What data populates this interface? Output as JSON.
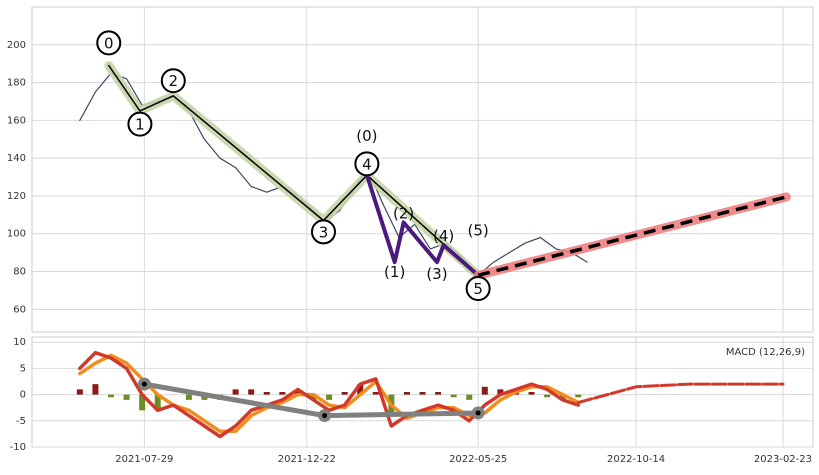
{
  "chart_data": [
    {
      "type": "line",
      "ylim": [
        48,
        220
      ],
      "yticks": [
        60,
        80,
        100,
        120,
        140,
        160,
        180,
        200
      ],
      "grid": true,
      "series": [
        {
          "color": "#3b4a5e",
          "width": 1.2,
          "x": [
            "2021-06-01",
            "2021-06-15",
            "2021-06-29",
            "2021-07-13",
            "2021-07-27",
            "2021-08-10",
            "2021-08-24",
            "2021-09-07",
            "2021-09-21",
            "2021-10-05",
            "2021-10-19",
            "2021-11-02",
            "2021-11-16",
            "2021-11-30",
            "2021-12-14",
            "2021-12-28",
            "2022-01-06",
            "2022-01-20",
            "2022-02-01",
            "2022-02-14",
            "2022-03-01",
            "2022-03-15",
            "2022-03-29",
            "2022-04-12",
            "2022-04-26",
            "2022-05-10",
            "2022-05-25",
            "2022-06-08",
            "2022-06-22",
            "2022-07-06",
            "2022-07-20",
            "2022-08-03",
            "2022-08-17",
            "2022-08-31"
          ],
          "values": [
            160,
            175,
            185,
            182,
            168,
            170,
            172,
            165,
            150,
            140,
            135,
            125,
            122,
            125,
            120,
            112,
            106,
            112,
            122,
            135,
            115,
            98,
            105,
            92,
            95,
            88,
            78,
            85,
            90,
            95,
            98,
            92,
            90,
            85
          ]
        },
        {
          "color": "#000000",
          "halo": "#c5d5a8",
          "width": 1.5,
          "x": [
            "2021-06-27",
            "2021-07-25",
            "2021-08-24",
            "2022-01-06",
            "2022-02-14",
            "2022-05-25"
          ],
          "values": [
            189,
            165,
            173,
            107,
            131,
            78
          ]
        },
        {
          "color": "#4b1a7e",
          "width": 4,
          "x": [
            "2022-02-14",
            "2022-03-11",
            "2022-03-19",
            "2022-04-18",
            "2022-04-24",
            "2022-05-25"
          ],
          "values": [
            131,
            85,
            106,
            85,
            94,
            78
          ]
        },
        {
          "color": "#000000",
          "halo": "#f08080",
          "width": 3.5,
          "dash": true,
          "x": [
            "2022-05-25",
            "2023-02-26"
          ],
          "values": [
            78,
            119.5
          ]
        }
      ],
      "annotations": [
        {
          "text": "0",
          "x": "2021-06-27",
          "y": 201,
          "circled": true
        },
        {
          "text": "1",
          "x": "2021-07-25",
          "y": 158,
          "circled": true
        },
        {
          "text": "2",
          "x": "2021-08-24",
          "y": 181,
          "circled": true
        },
        {
          "text": "3",
          "x": "2022-01-06",
          "y": 101,
          "circled": true
        },
        {
          "text": "4",
          "x": "2022-02-14",
          "y": 137,
          "circled": true
        },
        {
          "text": "5",
          "x": "2022-05-25",
          "y": 71,
          "circled": true
        },
        {
          "text": "(0)",
          "x": "2022-02-14",
          "y": 152,
          "circled": false
        },
        {
          "text": "(1)",
          "x": "2022-03-11",
          "y": 80,
          "circled": false
        },
        {
          "text": "(2)",
          "x": "2022-03-19",
          "y": 111,
          "circled": false
        },
        {
          "text": "(3)",
          "x": "2022-04-18",
          "y": 79,
          "circled": false
        },
        {
          "text": "(4)",
          "x": "2022-04-24",
          "y": 99,
          "circled": false
        },
        {
          "text": "(5)",
          "x": "2022-05-25",
          "y": 102,
          "circled": false
        }
      ]
    },
    {
      "type": "macd",
      "label": "MACD (12,26,9)",
      "xlim": [
        "2021-04-19",
        "2023-03-22"
      ],
      "xticks": [
        "2021-07-29",
        "2021-12-22",
        "2022-05-25",
        "2022-10-14",
        "2023-02-23"
      ],
      "ylim": [
        -10,
        11
      ],
      "yticks": [
        -10,
        -5,
        0,
        5,
        10
      ],
      "grid": true,
      "x": [
        "2021-06-01",
        "2021-06-15",
        "2021-06-29",
        "2021-07-13",
        "2021-07-27",
        "2021-08-10",
        "2021-08-24",
        "2021-09-07",
        "2021-09-21",
        "2021-10-05",
        "2021-10-19",
        "2021-11-02",
        "2021-11-16",
        "2021-11-30",
        "2021-12-14",
        "2021-12-28",
        "2022-01-11",
        "2022-01-25",
        "2022-02-08",
        "2022-02-22",
        "2022-03-08",
        "2022-03-22",
        "2022-04-05",
        "2022-04-19",
        "2022-05-03",
        "2022-05-17",
        "2022-05-31",
        "2022-06-14",
        "2022-06-28",
        "2022-07-12",
        "2022-07-26",
        "2022-08-09",
        "2022-08-23"
      ],
      "series": [
        {
          "color": "#f28c1c",
          "values": [
            4,
            6,
            7.5,
            6,
            3,
            0,
            -2,
            -3,
            -5,
            -7,
            -7,
            -4,
            -2.5,
            -1.5,
            0,
            0,
            -2,
            -2.5,
            0,
            2.5,
            -2,
            -4.5,
            -3.5,
            -2.5,
            -2.5,
            -4,
            -3.5,
            -1,
            0.5,
            1.5,
            1.5,
            0,
            -1.5
          ]
        },
        {
          "color": "#d13a2a",
          "values": [
            5,
            8,
            7,
            5,
            0,
            -3,
            -2,
            -4,
            -6,
            -8,
            -6,
            -3,
            -2,
            -1,
            1,
            -1,
            -3,
            -2,
            2,
            3,
            -6,
            -4,
            -3,
            -2,
            -3,
            -5,
            -2,
            0,
            1,
            2,
            1,
            -1,
            -2
          ]
        }
      ],
      "histogram": {
        "up": "#8b1a1a",
        "down": "#6b8e23",
        "values": [
          1,
          2,
          -0.5,
          -1,
          -3,
          -3,
          0,
          -1,
          -1,
          -1,
          1,
          1,
          0.5,
          0.5,
          1,
          -1,
          -1,
          0.5,
          2,
          0.5,
          -4,
          0.5,
          0.5,
          0.5,
          -0.5,
          -1,
          1.5,
          1,
          0.5,
          0.5,
          -0.5,
          -1,
          -0.5
        ]
      },
      "trend": {
        "color": "#808080",
        "x": [
          "2021-07-29",
          "2022-01-07",
          "2022-05-25"
        ],
        "values": [
          2,
          -4,
          -3.5
        ]
      },
      "projection": {
        "color": "#d13a2a",
        "x": [
          "2022-08-23",
          "2022-10-14",
          "2022-12-01",
          "2023-02-23"
        ],
        "values": [
          -1.5,
          1.5,
          2,
          2
        ]
      }
    }
  ]
}
